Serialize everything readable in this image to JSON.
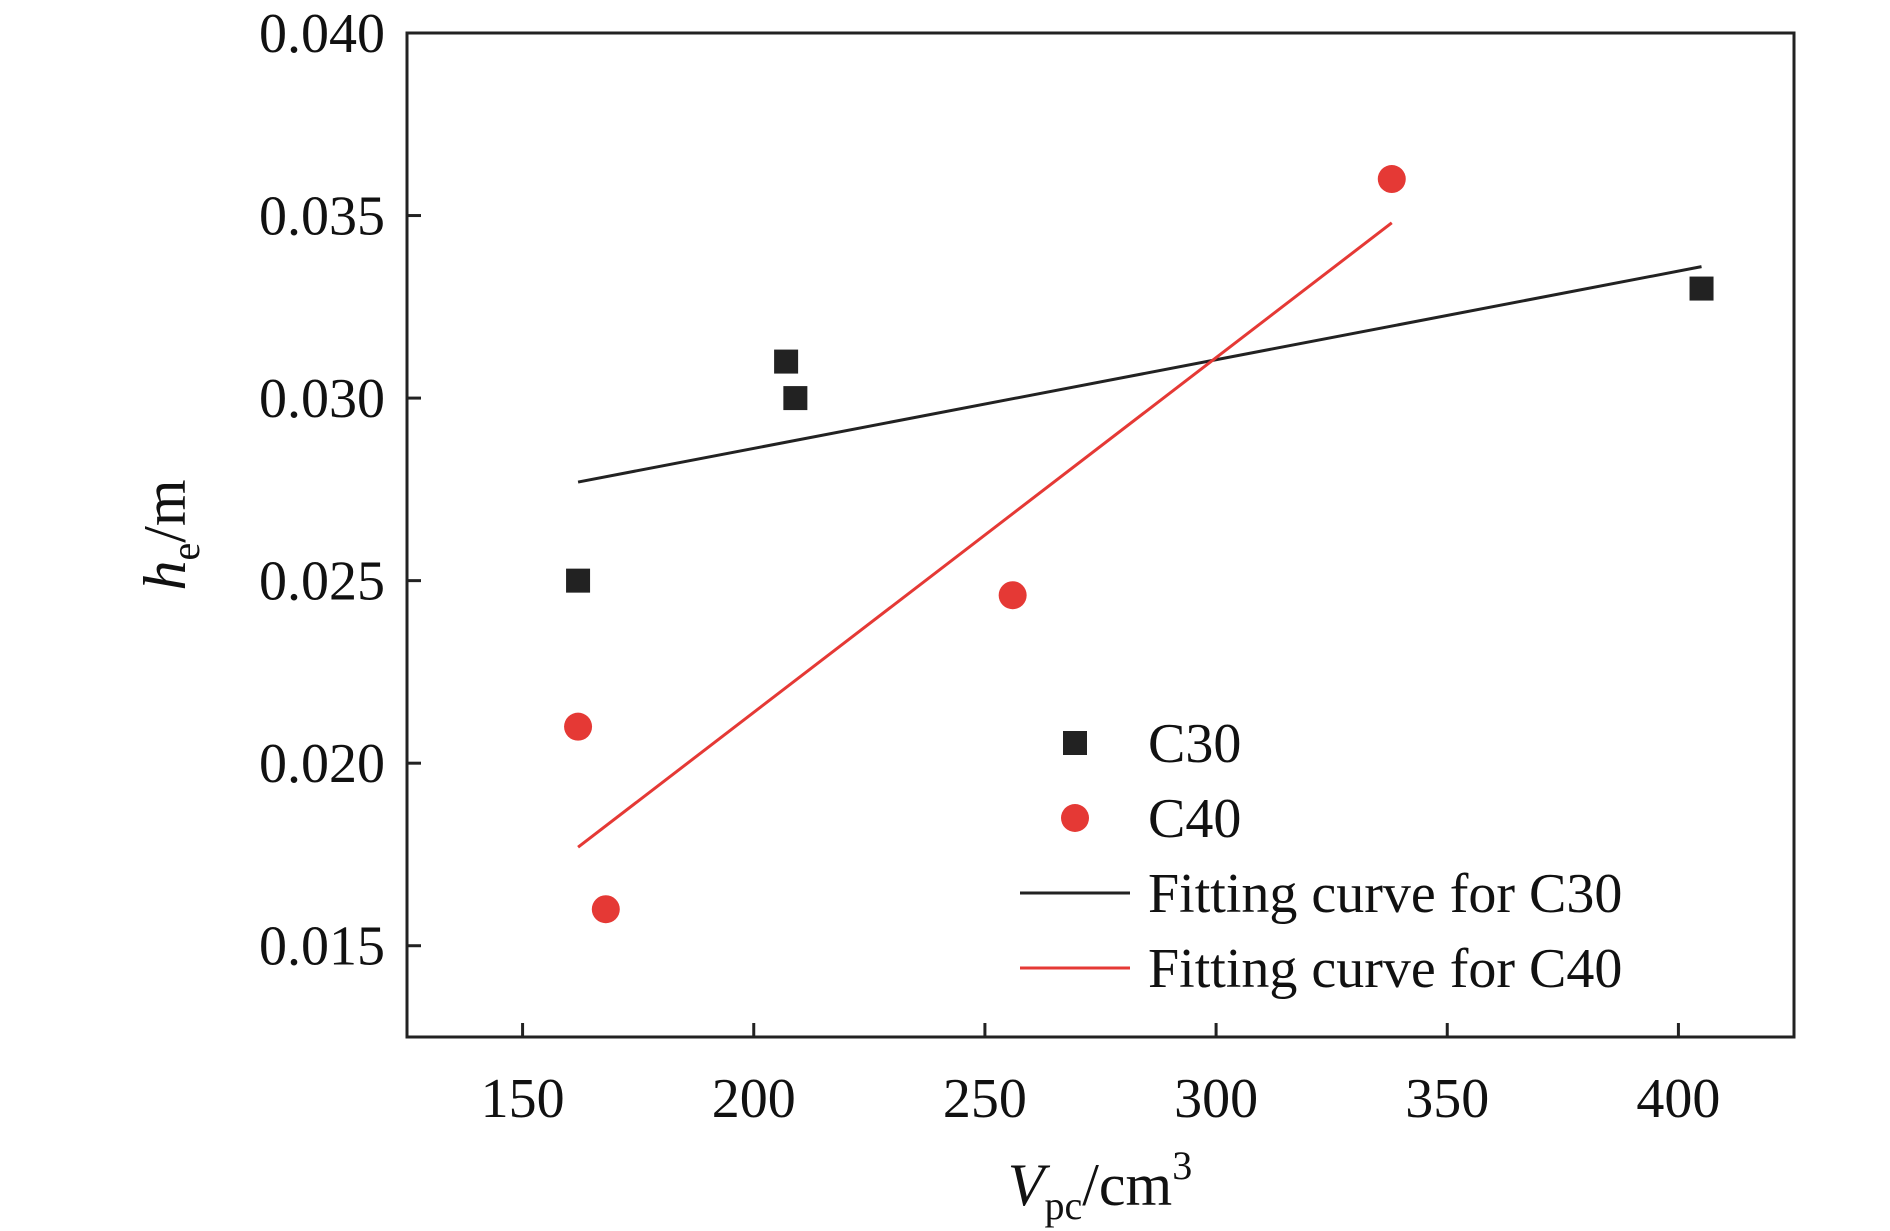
{
  "chart_data": {
    "type": "scatter",
    "xlabel": {
      "main": "V",
      "sub": "pc",
      "unit": "/cm",
      "sup": "3"
    },
    "ylabel": {
      "main": "h",
      "sub": "e",
      "unit": "/m"
    },
    "xlim": [
      125,
      425
    ],
    "ylim": [
      0.0125,
      0.04
    ],
    "xticks": [
      150,
      200,
      250,
      300,
      350,
      400
    ],
    "yticks": [
      0.015,
      0.02,
      0.025,
      0.03,
      0.035,
      0.04
    ],
    "ytick_labels": [
      "0.015",
      "0.020",
      "0.025",
      "0.030",
      "0.035",
      "0.040"
    ],
    "grid": false,
    "legend_position": "lower-right",
    "series": [
      {
        "name": "C30",
        "kind": "scatter",
        "marker": "square",
        "color": "#222222",
        "points": [
          [
            162,
            0.025
          ],
          [
            207,
            0.031
          ],
          [
            209,
            0.03
          ],
          [
            405,
            0.033
          ]
        ]
      },
      {
        "name": "C40",
        "kind": "scatter",
        "marker": "circle",
        "color": "#e53935",
        "points": [
          [
            162,
            0.021
          ],
          [
            168,
            0.016
          ],
          [
            256,
            0.0246
          ],
          [
            338,
            0.036
          ]
        ]
      },
      {
        "name": "Fitting curve for C30",
        "kind": "line",
        "color": "#222222",
        "points": [
          [
            162,
            0.0277
          ],
          [
            405,
            0.0336
          ]
        ]
      },
      {
        "name": "Fitting curve for C40",
        "kind": "line",
        "color": "#e53935",
        "points": [
          [
            162,
            0.0177
          ],
          [
            338,
            0.0348
          ]
        ]
      }
    ]
  }
}
